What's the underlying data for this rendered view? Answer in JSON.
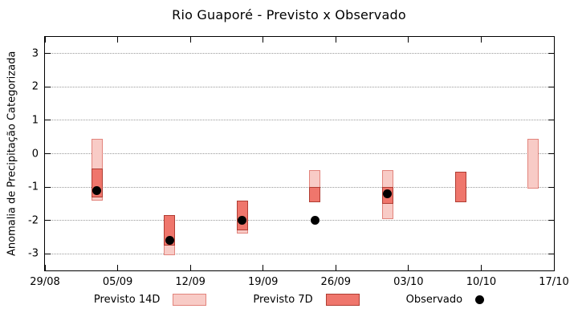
{
  "chart_data": {
    "type": "bar",
    "subtype": "range-bars-with-observed-points",
    "title": "Rio Guaporé - Previsto x Observado",
    "xlabel": "",
    "ylabel": "Anomalia de Precipitação Categorizada",
    "ylim": [
      -3.5,
      3.5
    ],
    "yticks": [
      3,
      2,
      1,
      0,
      -1,
      -2,
      -3
    ],
    "grid": {
      "horizontal": true,
      "vertical": false,
      "style": "dotted",
      "color": "#9a9a9a"
    },
    "legend_position": "bottom-center",
    "x_axis": {
      "unit": "days-from-29/08",
      "range": [
        0,
        49
      ],
      "ticks": [
        {
          "pos": 0,
          "label": "29/08"
        },
        {
          "pos": 7,
          "label": "05/09"
        },
        {
          "pos": 14,
          "label": "12/09"
        },
        {
          "pos": 21,
          "label": "19/09"
        },
        {
          "pos": 28,
          "label": "26/09"
        },
        {
          "pos": 35,
          "label": "03/10"
        },
        {
          "pos": 42,
          "label": "10/10"
        },
        {
          "pos": 49,
          "label": "17/10"
        }
      ]
    },
    "series": [
      {
        "name": "Previsto 14D",
        "type": "box",
        "fill": "#f8cbc6",
        "stroke": "#e2847c"
      },
      {
        "name": "Previsto 7D",
        "type": "box",
        "fill": "#ef766c",
        "stroke": "#b03d33"
      },
      {
        "name": "Observado",
        "type": "dot",
        "fill": "#000000"
      }
    ],
    "points": [
      {
        "x": 5,
        "date_approx": "03/09",
        "previsto14": [
          -1.4,
          0.45
        ],
        "previsto7": [
          -1.3,
          -0.45
        ],
        "observado": -1.1
      },
      {
        "x": 12,
        "date_approx": "10/09",
        "previsto14": [
          -3.05,
          -1.85
        ],
        "previsto7": [
          -2.75,
          -1.85
        ],
        "observado": -2.6
      },
      {
        "x": 19,
        "date_approx": "17/09",
        "previsto14": [
          -2.4,
          -1.4
        ],
        "previsto7": [
          -2.3,
          -1.4
        ],
        "observado": -2.0
      },
      {
        "x": 26,
        "date_approx": "24/09",
        "previsto14": [
          -1.45,
          -0.5
        ],
        "previsto7": [
          -1.45,
          -1.0
        ],
        "observado": -2.0
      },
      {
        "x": 33,
        "date_approx": "01/10",
        "previsto14": [
          -1.95,
          -0.5
        ],
        "previsto7": [
          -1.5,
          -1.0
        ],
        "observado": -1.2
      },
      {
        "x": 40,
        "date_approx": "08/10",
        "previsto14": null,
        "previsto7": [
          -1.45,
          -0.55
        ],
        "observado": null
      },
      {
        "x": 47,
        "date_approx": "15/10",
        "previsto14": [
          -1.05,
          0.45
        ],
        "previsto7": null,
        "observado": null
      }
    ]
  }
}
